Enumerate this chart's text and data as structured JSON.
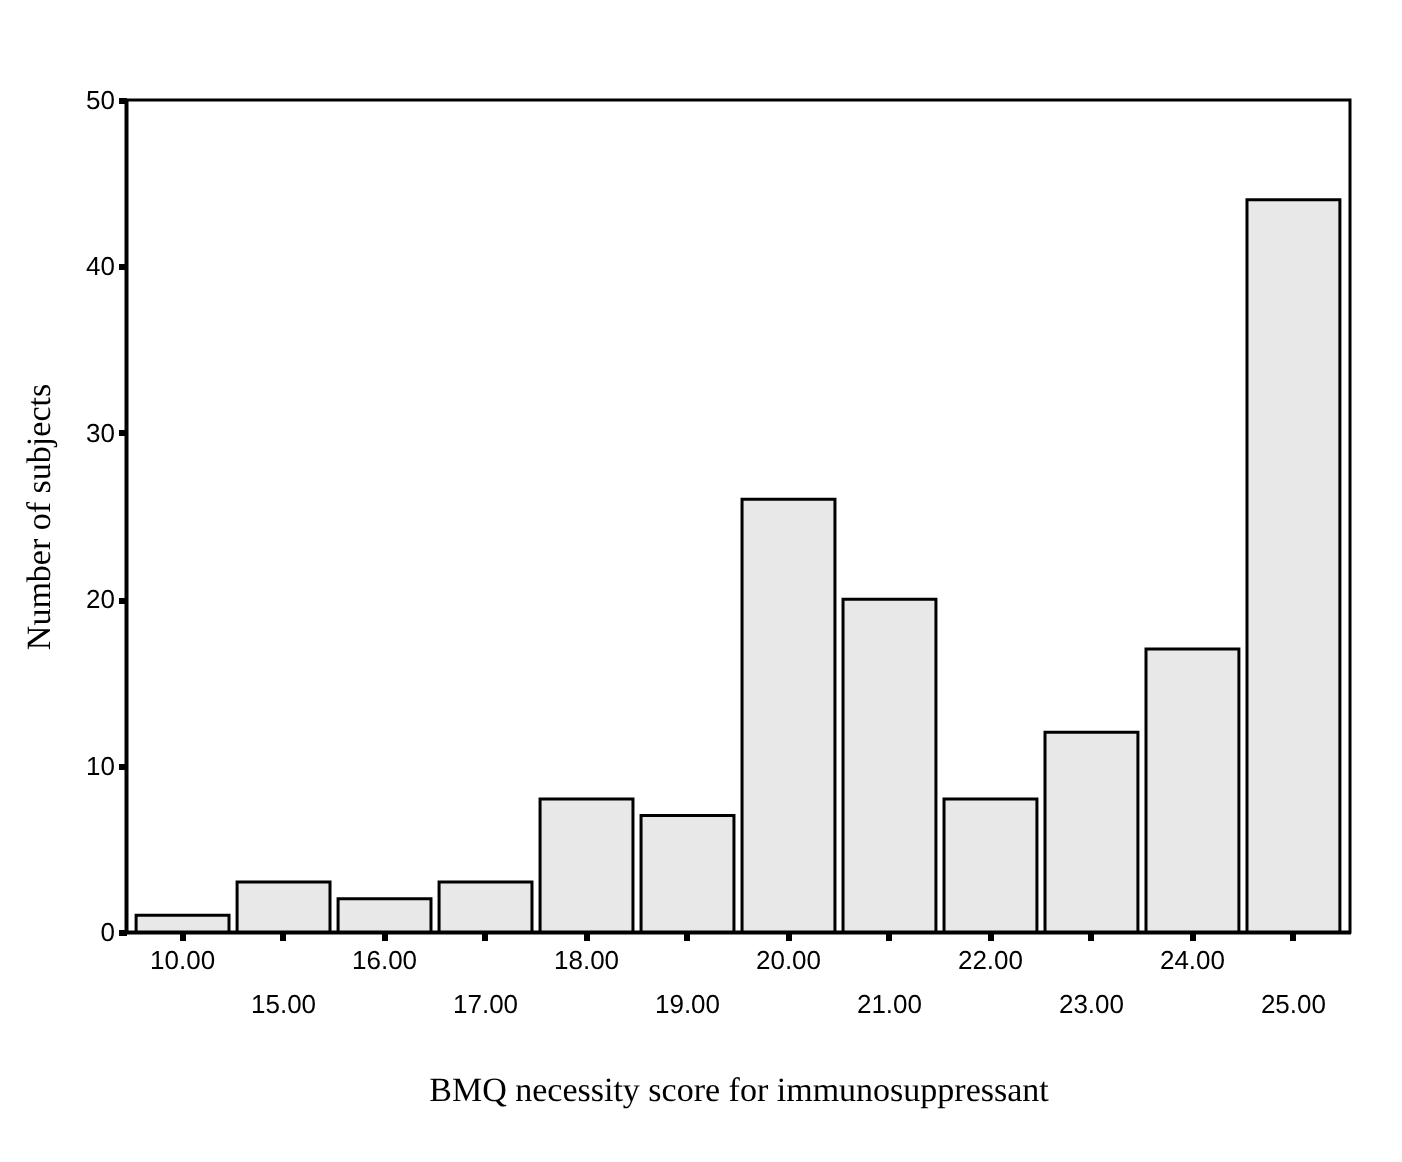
{
  "chart_data": {
    "type": "bar",
    "xlabel": "BMQ necessity score for immunosuppressant",
    "ylabel": "Number of subjects",
    "categories": [
      "10.00",
      "15.00",
      "16.00",
      "17.00",
      "18.00",
      "19.00",
      "20.00",
      "21.00",
      "22.00",
      "23.00",
      "24.00",
      "25.00"
    ],
    "values": [
      1,
      3,
      2,
      3,
      8,
      7,
      26,
      20,
      8,
      12,
      17,
      44
    ],
    "color": "#e8e8e8",
    "ylim": [
      0,
      50
    ],
    "yticks": [
      0,
      10,
      20,
      30,
      40,
      50
    ],
    "grid": false
  }
}
